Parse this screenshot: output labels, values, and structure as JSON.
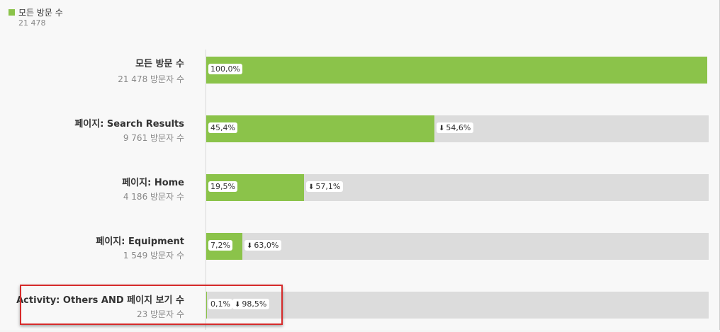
{
  "legend": {
    "label": "모든 방문 수",
    "value": "21 478",
    "color": "#8bc34a"
  },
  "chart_data": {
    "type": "bar",
    "categories": [
      "모든 방문 수",
      "페이지: Search Results",
      "페이지: Home",
      "페이지: Equipment",
      "Activity: Others AND 페이지 보기 수"
    ],
    "series": [
      {
        "values": [
          21478,
          9761,
          4186,
          1549,
          23
        ]
      }
    ],
    "xlim": [
      0,
      21478
    ],
    "grid": false,
    "legend_position": "top-left",
    "steps": [
      {
        "label": "모든 방문 수",
        "count": "21 478 방문자 수",
        "pct": 100.0,
        "pct_label": "100,0%",
        "drop_label": ""
      },
      {
        "label": "페이지: Search Results",
        "count": "9 761 방문자 수",
        "pct": 45.4,
        "pct_label": "45,4%",
        "drop_label": "54,6%"
      },
      {
        "label": "페이지: Home",
        "count": "4 186 방문자 수",
        "pct": 19.5,
        "pct_label": "19,5%",
        "drop_label": "57,1%"
      },
      {
        "label": "페이지: Equipment",
        "count": "1 549 방문자 수",
        "pct": 7.2,
        "pct_label": "7,2%",
        "drop_label": "63,0%"
      },
      {
        "label": "Activity: Others AND 페이지 보기 수",
        "count": "23 방문자 수",
        "pct": 0.1,
        "pct_label": "0,1%",
        "drop_label": "98,5%"
      }
    ],
    "colors": {
      "fill": "#8bc34a",
      "track": "#dcdcdc",
      "highlight": "#d62b2b"
    },
    "highlighted_step": 4
  }
}
